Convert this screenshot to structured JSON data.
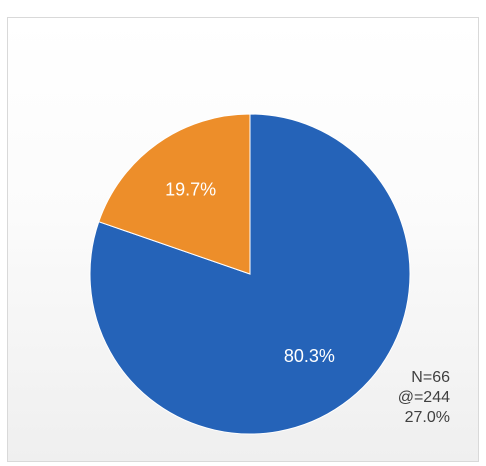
{
  "chart_data": {
    "type": "pie",
    "slices": [
      {
        "value": 80.3,
        "label": "80.3%",
        "color": "#2563b8"
      },
      {
        "value": 19.7,
        "label": "19.7%",
        "color": "#ed8e2a"
      }
    ],
    "start_angle": "12 o'clock",
    "direction": "clockwise",
    "annotations": [
      "N=66",
      "@=244",
      "27.0%"
    ]
  }
}
